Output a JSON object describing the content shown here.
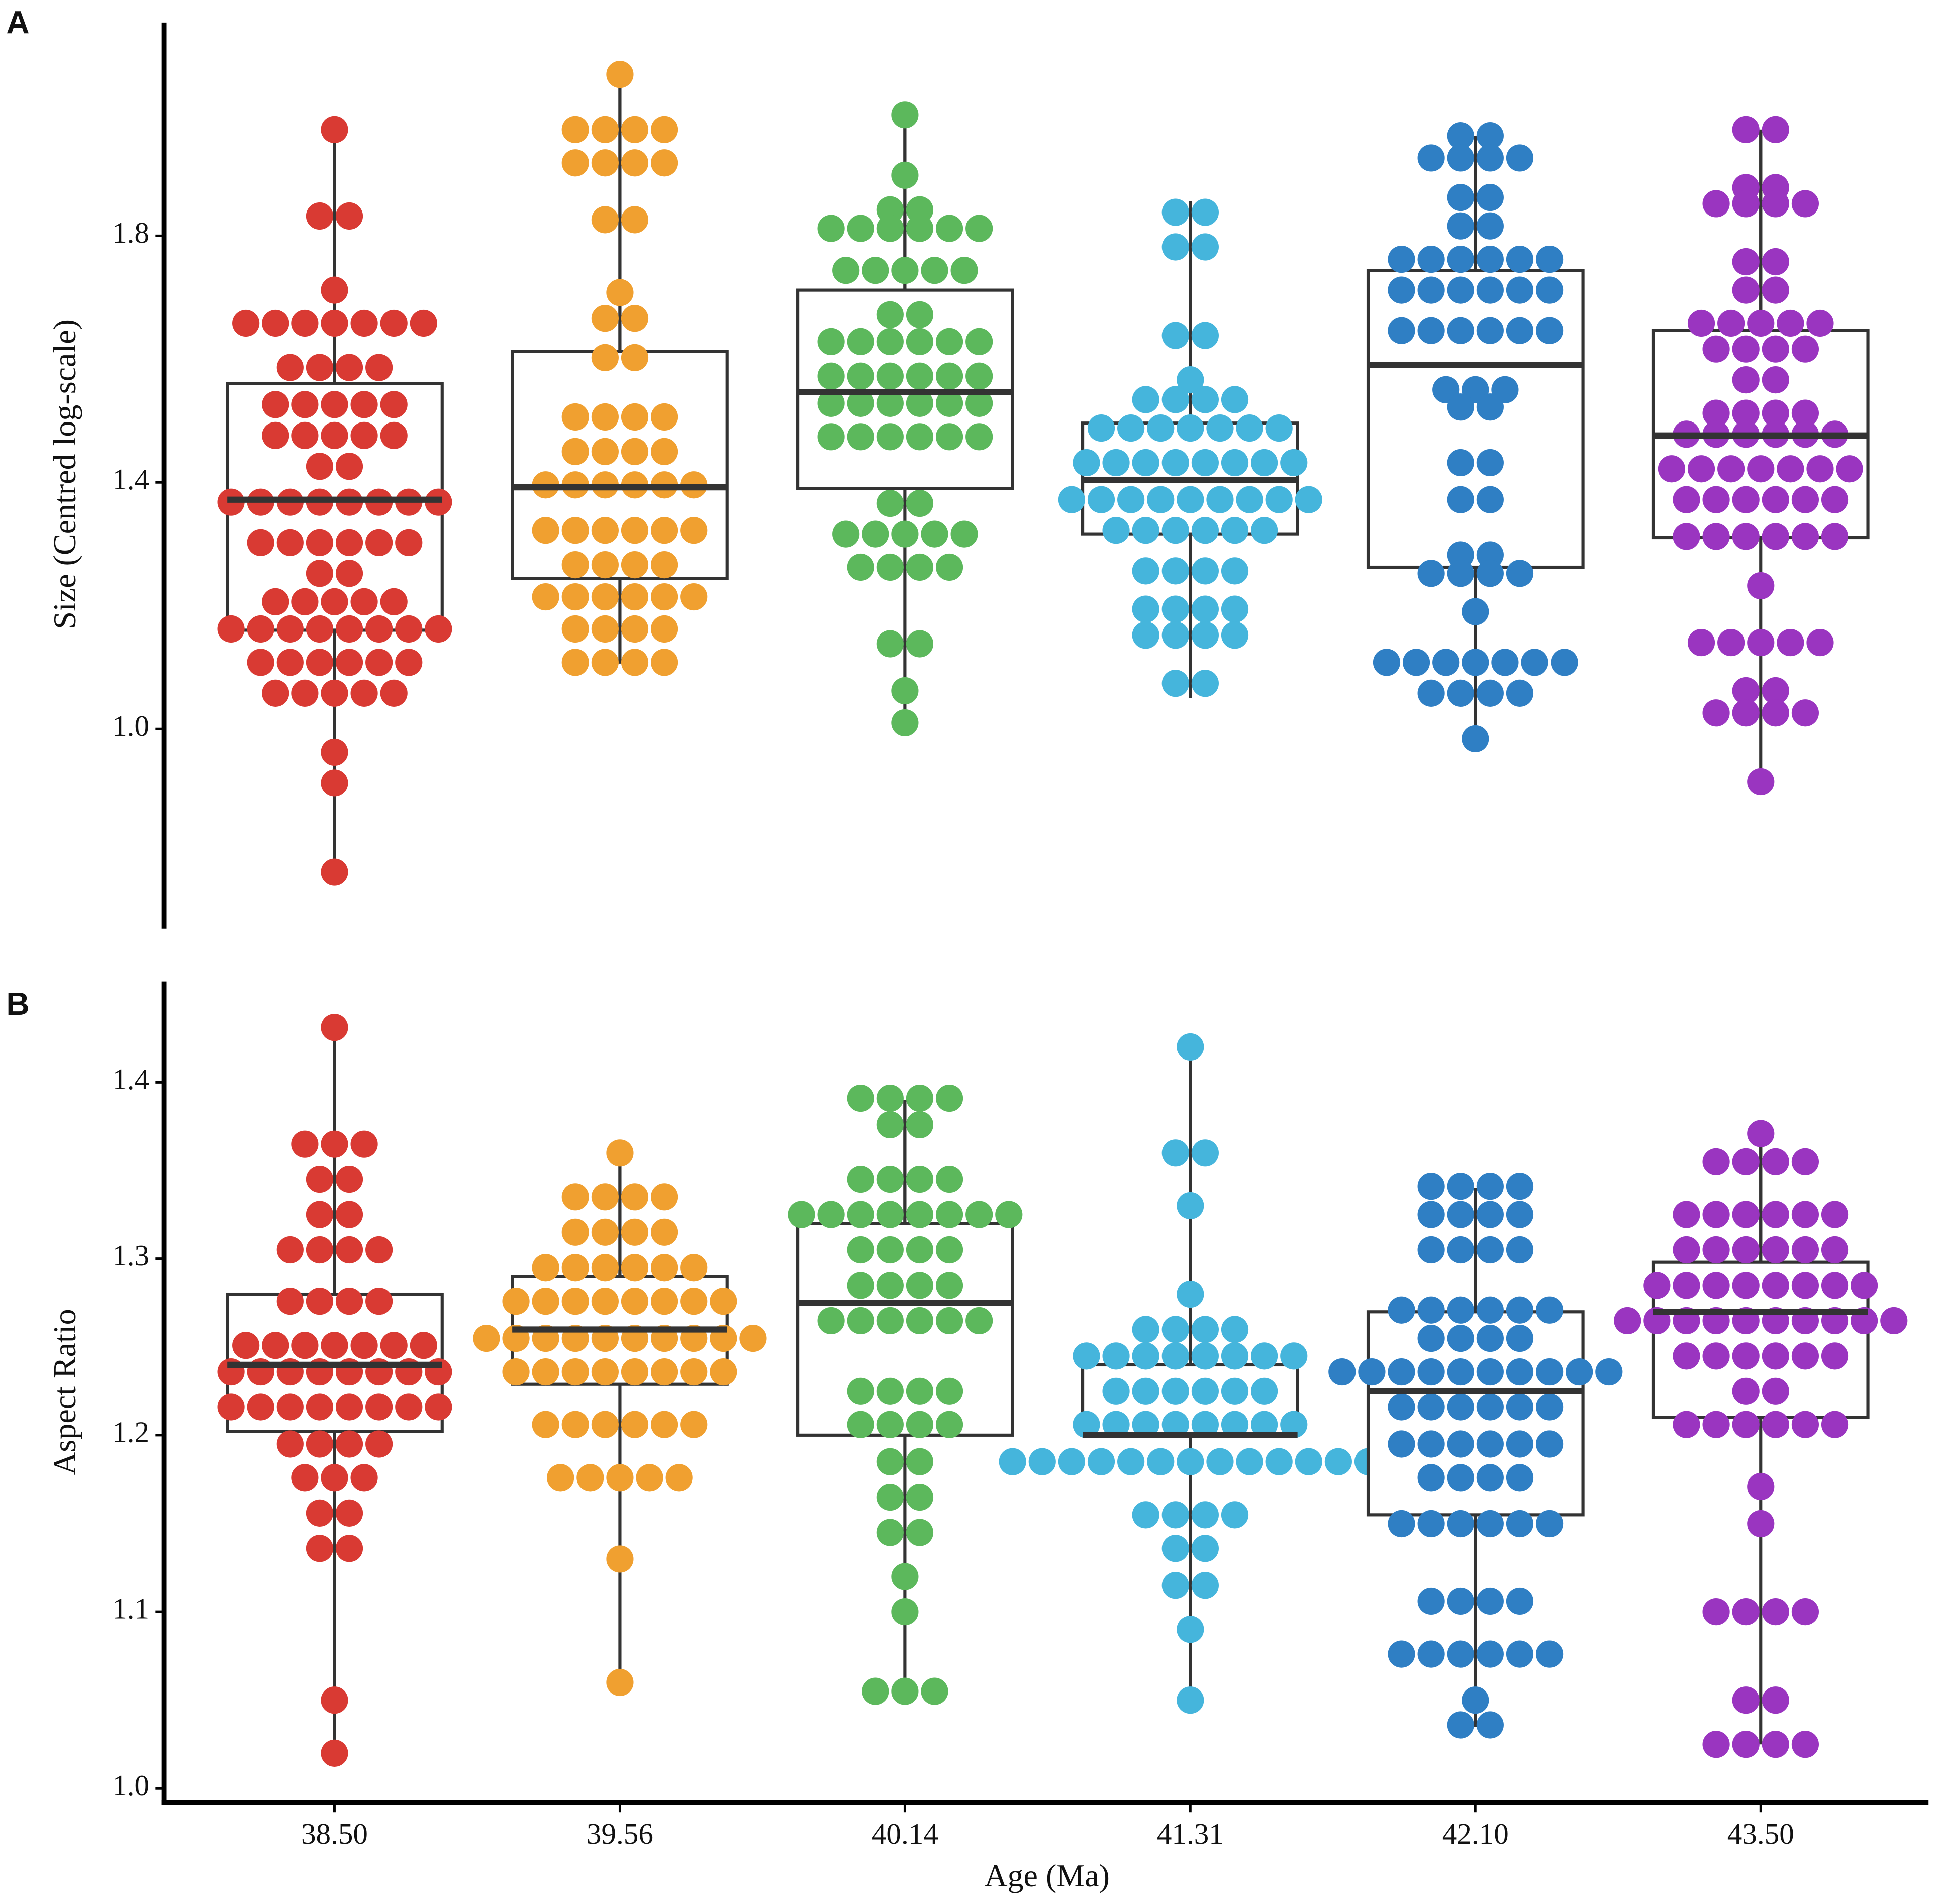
{
  "chart_data": [
    {
      "type": "box",
      "panel": "A",
      "ylabel": "Size  (Centred log-scale)",
      "ylim": [
        0.68,
        2.146
      ],
      "yticks": [
        {
          "value": 1,
          "label": "1.0"
        },
        1.4,
        1.8
      ],
      "series": [
        {
          "color": "#d93a33",
          "box": [
            0.766,
            1.16,
            1.372,
            1.56,
            1.972
          ],
          "dot_values": [
            1.972,
            1.832,
            1.712,
            1.658,
            1.586,
            1.526,
            1.476,
            1.426,
            1.368,
            1.302,
            1.252,
            1.206,
            1.162,
            1.108,
            1.058,
            0.962,
            0.912,
            0.768
          ],
          "dot_counts": [
            1,
            2,
            1,
            7,
            4,
            5,
            5,
            2,
            8,
            6,
            2,
            5,
            8,
            6,
            5,
            1,
            1,
            1
          ]
        },
        {
          "color": "#f0a030",
          "box": [
            1.106,
            1.244,
            1.392,
            1.612,
            2.062
          ],
          "dot_values": [
            2.062,
            1.972,
            1.918,
            1.826,
            1.708,
            1.666,
            1.602,
            1.506,
            1.45,
            1.396,
            1.322,
            1.266,
            1.214,
            1.162,
            1.108
          ],
          "dot_counts": [
            1,
            4,
            4,
            2,
            1,
            2,
            2,
            4,
            4,
            6,
            6,
            4,
            6,
            4,
            4
          ]
        },
        {
          "color": "#5cb85c",
          "box": [
            1.008,
            1.39,
            1.546,
            1.712,
            1.996
          ],
          "dot_values": [
            1.996,
            1.898,
            1.842,
            1.812,
            1.744,
            1.672,
            1.628,
            1.572,
            1.528,
            1.474,
            1.366,
            1.316,
            1.262,
            1.138,
            1.062,
            1.01
          ],
          "dot_counts": [
            1,
            1,
            2,
            6,
            5,
            2,
            6,
            6,
            6,
            6,
            2,
            5,
            4,
            2,
            1,
            1
          ]
        },
        {
          "color": "#45b5dc",
          "box": [
            1.05,
            1.316,
            1.404,
            1.496,
            1.856
          ],
          "dot_values": [
            1.838,
            1.782,
            1.638,
            1.566,
            1.534,
            1.488,
            1.432,
            1.372,
            1.322,
            1.256,
            1.194,
            1.152,
            1.074
          ],
          "dot_counts": [
            2,
            2,
            2,
            1,
            4,
            7,
            8,
            9,
            6,
            4,
            4,
            4,
            2
          ]
        },
        {
          "color": "#2f7fc4",
          "box": [
            0.982,
            1.262,
            1.59,
            1.744,
            1.962
          ],
          "dot_values": [
            1.962,
            1.926,
            1.862,
            1.816,
            1.762,
            1.712,
            1.646,
            1.55,
            1.522,
            1.432,
            1.372,
            1.282,
            1.252,
            1.19,
            1.108,
            1.058,
            0.984
          ],
          "dot_counts": [
            2,
            4,
            2,
            2,
            6,
            6,
            6,
            3,
            2,
            2,
            2,
            2,
            4,
            1,
            7,
            4,
            1
          ]
        },
        {
          "color": "#9a35c0",
          "box": [
            0.914,
            1.31,
            1.476,
            1.646,
            1.972
          ],
          "dot_values": [
            1.972,
            1.878,
            1.852,
            1.758,
            1.712,
            1.658,
            1.616,
            1.566,
            1.512,
            1.478,
            1.422,
            1.372,
            1.312,
            1.232,
            1.14,
            1.062,
            1.026,
            0.914
          ],
          "dot_counts": [
            2,
            2,
            4,
            2,
            2,
            5,
            4,
            2,
            4,
            6,
            7,
            6,
            6,
            1,
            5,
            2,
            4,
            1
          ]
        }
      ]
    },
    {
      "type": "box",
      "panel": "B",
      "ylabel": "Aspect Ratio",
      "xlabel": "Age (Ma)",
      "categories": [
        "38.50",
        "39.56",
        "40.14",
        "41.31",
        "42.10",
        "43.50"
      ],
      "ylim": [
        0.992,
        1.457
      ],
      "yticks": [
        {
          "value": 1,
          "label": "1.0"
        },
        1.1,
        1.2,
        1.3,
        1.4
      ],
      "series": [
        {
          "color": "#d93a33",
          "box": [
            1.02,
            1.202,
            1.24,
            1.28,
            1.431
          ],
          "dot_values": [
            1.431,
            1.365,
            1.345,
            1.325,
            1.305,
            1.276,
            1.251,
            1.236,
            1.216,
            1.195,
            1.176,
            1.156,
            1.136,
            1.05,
            1.02
          ],
          "dot_counts": [
            1,
            3,
            2,
            2,
            4,
            4,
            7,
            8,
            8,
            4,
            3,
            2,
            2,
            1,
            1
          ]
        },
        {
          "color": "#f0a030",
          "box": [
            1.06,
            1.229,
            1.26,
            1.29,
            1.36
          ],
          "dot_values": [
            1.36,
            1.335,
            1.315,
            1.295,
            1.276,
            1.255,
            1.236,
            1.206,
            1.176,
            1.13,
            1.06
          ],
          "dot_counts": [
            1,
            4,
            4,
            6,
            8,
            10,
            8,
            6,
            5,
            1,
            1
          ]
        },
        {
          "color": "#5cb85c",
          "box": [
            1.055,
            1.2,
            1.275,
            1.32,
            1.39
          ],
          "dot_values": [
            1.391,
            1.376,
            1.345,
            1.325,
            1.305,
            1.285,
            1.265,
            1.225,
            1.206,
            1.185,
            1.165,
            1.145,
            1.12,
            1.1,
            1.055
          ],
          "dot_counts": [
            4,
            2,
            4,
            8,
            4,
            4,
            6,
            4,
            4,
            2,
            2,
            2,
            1,
            1,
            3
          ]
        },
        {
          "color": "#45b5dc",
          "box": [
            1.05,
            1.2,
            1.2,
            1.24,
            1.42
          ],
          "dot_values": [
            1.42,
            1.36,
            1.33,
            1.28,
            1.26,
            1.245,
            1.225,
            1.206,
            1.185,
            1.155,
            1.136,
            1.115,
            1.09,
            1.05
          ],
          "dot_counts": [
            1,
            2,
            1,
            1,
            4,
            8,
            6,
            8,
            13,
            4,
            2,
            2,
            1,
            1
          ]
        },
        {
          "color": "#2f7fc4",
          "box": [
            1.035,
            1.155,
            1.225,
            1.27,
            1.34
          ],
          "dot_values": [
            1.341,
            1.325,
            1.305,
            1.271,
            1.255,
            1.236,
            1.216,
            1.195,
            1.176,
            1.15,
            1.106,
            1.076,
            1.05,
            1.036
          ],
          "dot_counts": [
            4,
            4,
            4,
            6,
            4,
            10,
            6,
            6,
            4,
            6,
            4,
            6,
            1,
            2
          ]
        },
        {
          "color": "#9a35c0",
          "box": [
            1.025,
            1.21,
            1.27,
            1.298,
            1.37
          ],
          "dot_values": [
            1.371,
            1.355,
            1.325,
            1.305,
            1.285,
            1.265,
            1.245,
            1.225,
            1.206,
            1.171,
            1.15,
            1.1,
            1.05,
            1.025
          ],
          "dot_counts": [
            1,
            4,
            6,
            6,
            8,
            10,
            6,
            2,
            6,
            1,
            1,
            4,
            2,
            4
          ]
        }
      ]
    }
  ]
}
